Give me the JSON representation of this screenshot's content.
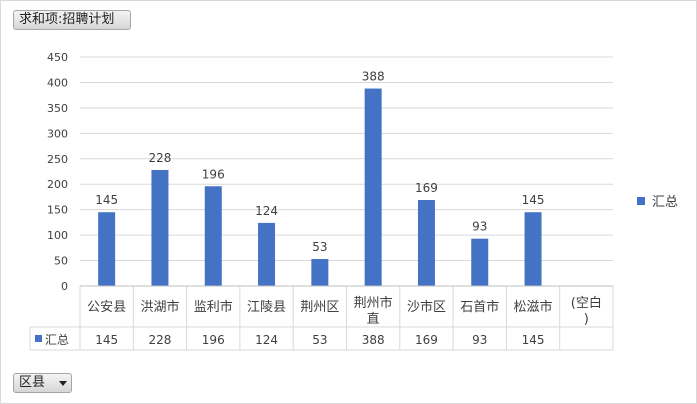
{
  "pivot": {
    "value_field_label": "求和项:招聘计划",
    "row_field_label": "区县",
    "dropdown_icon": "chevron-down-icon"
  },
  "legend": {
    "label": "汇总",
    "color": "#4472c4"
  },
  "chart_data": {
    "type": "bar",
    "categories": [
      "公安县",
      "洪湖市",
      "监利市",
      "江陵县",
      "荆州区",
      "荆州市直",
      "沙市区",
      "石首市",
      "松滋市",
      "(空白)"
    ],
    "series": [
      {
        "name": "汇总",
        "values": [
          145,
          228,
          196,
          124,
          53,
          388,
          169,
          93,
          145,
          null
        ],
        "color": "#4472c4"
      }
    ],
    "ylim": [
      0,
      450
    ],
    "yticks": [
      0,
      50,
      100,
      150,
      200,
      250,
      300,
      350,
      400,
      450
    ],
    "grid": true,
    "data_labels": true,
    "data_table": true,
    "legend_position": "right"
  }
}
